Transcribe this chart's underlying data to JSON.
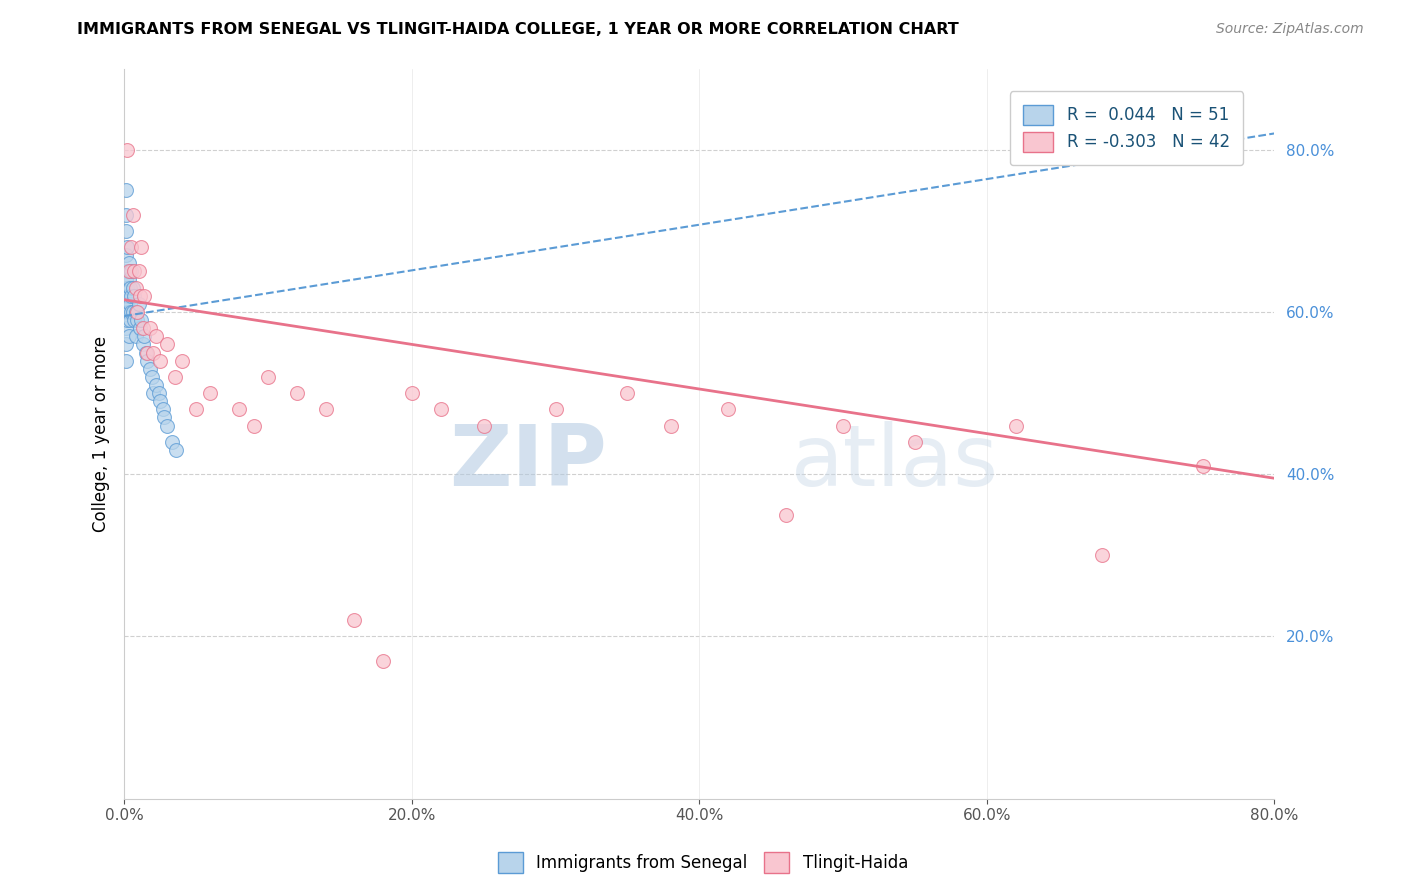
{
  "title": "IMMIGRANTS FROM SENEGAL VS TLINGIT-HAIDA COLLEGE, 1 YEAR OR MORE CORRELATION CHART",
  "source": "Source: ZipAtlas.com",
  "ylabel": "College, 1 year or more",
  "xlim": [
    0.0,
    0.8
  ],
  "ylim": [
    0.0,
    0.9
  ],
  "xtick_vals": [
    0.0,
    0.2,
    0.4,
    0.6,
    0.8
  ],
  "ytick_vals_right": [
    0.2,
    0.4,
    0.6,
    0.8
  ],
  "ytick_gridlines": [
    0.2,
    0.4,
    0.6,
    0.8
  ],
  "legend_r_blue": " 0.044",
  "legend_n_blue": "51",
  "legend_r_pink": "-0.303",
  "legend_n_pink": "42",
  "blue_fill": "#b8d4eb",
  "blue_edge": "#5b9bd5",
  "pink_fill": "#f9c6d0",
  "pink_edge": "#e8728a",
  "blue_trend_color": "#5b9bd5",
  "pink_trend_color": "#e8728a",
  "watermark_zip": "ZIP",
  "watermark_atlas": "atlas",
  "blue_scatter_x": [
    0.001,
    0.001,
    0.001,
    0.001,
    0.001,
    0.001,
    0.001,
    0.001,
    0.001,
    0.001,
    0.002,
    0.002,
    0.002,
    0.002,
    0.002,
    0.003,
    0.003,
    0.003,
    0.003,
    0.003,
    0.004,
    0.004,
    0.004,
    0.005,
    0.005,
    0.005,
    0.006,
    0.006,
    0.007,
    0.007,
    0.008,
    0.008,
    0.009,
    0.01,
    0.011,
    0.012,
    0.013,
    0.014,
    0.015,
    0.016,
    0.018,
    0.019,
    0.02,
    0.022,
    0.024,
    0.025,
    0.027,
    0.028,
    0.03,
    0.033,
    0.036
  ],
  "blue_scatter_y": [
    0.75,
    0.72,
    0.7,
    0.67,
    0.64,
    0.62,
    0.6,
    0.58,
    0.56,
    0.54,
    0.68,
    0.65,
    0.63,
    0.61,
    0.59,
    0.66,
    0.64,
    0.62,
    0.6,
    0.57,
    0.63,
    0.61,
    0.59,
    0.65,
    0.62,
    0.6,
    0.63,
    0.6,
    0.62,
    0.59,
    0.6,
    0.57,
    0.59,
    0.61,
    0.58,
    0.59,
    0.56,
    0.57,
    0.55,
    0.54,
    0.53,
    0.52,
    0.5,
    0.51,
    0.5,
    0.49,
    0.48,
    0.47,
    0.46,
    0.44,
    0.43
  ],
  "pink_scatter_x": [
    0.002,
    0.003,
    0.005,
    0.006,
    0.007,
    0.008,
    0.009,
    0.01,
    0.011,
    0.012,
    0.013,
    0.014,
    0.016,
    0.018,
    0.02,
    0.022,
    0.025,
    0.03,
    0.035,
    0.04,
    0.05,
    0.06,
    0.08,
    0.09,
    0.1,
    0.12,
    0.14,
    0.16,
    0.18,
    0.2,
    0.22,
    0.25,
    0.3,
    0.35,
    0.38,
    0.42,
    0.46,
    0.5,
    0.55,
    0.62,
    0.68,
    0.75
  ],
  "pink_scatter_y": [
    0.8,
    0.65,
    0.68,
    0.72,
    0.65,
    0.63,
    0.6,
    0.65,
    0.62,
    0.68,
    0.58,
    0.62,
    0.55,
    0.58,
    0.55,
    0.57,
    0.54,
    0.56,
    0.52,
    0.54,
    0.48,
    0.5,
    0.48,
    0.46,
    0.52,
    0.5,
    0.48,
    0.22,
    0.17,
    0.5,
    0.48,
    0.46,
    0.48,
    0.5,
    0.46,
    0.48,
    0.35,
    0.46,
    0.44,
    0.46,
    0.3,
    0.41
  ],
  "blue_trend_x": [
    0.0,
    0.8
  ],
  "blue_trend_y": [
    0.595,
    0.82
  ],
  "pink_trend_x": [
    0.0,
    0.8
  ],
  "pink_trend_y": [
    0.615,
    0.395
  ]
}
